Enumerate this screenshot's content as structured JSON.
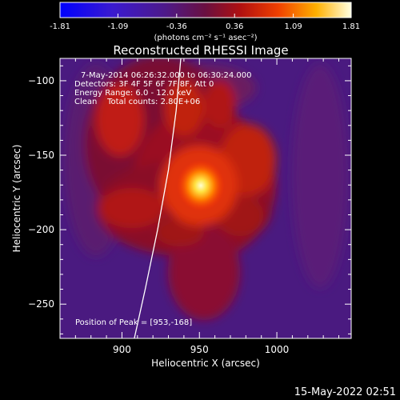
{
  "colorbar": {
    "ticks": [
      "-1.81",
      "-1.09",
      "-0.36",
      "0.36",
      "1.09",
      "1.81"
    ],
    "unit_label": "(photons cm⁻² s⁻¹ asec⁻²)",
    "range": [
      -1.81,
      1.81
    ],
    "colormap": "blue-purple-red-yellow-white"
  },
  "chart_data": {
    "type": "heatmap",
    "title": "Reconstructed RHESSI Image",
    "xlabel": "Heliocentric X (arcsec)",
    "ylabel": "Heliocentric Y (arcsec)",
    "xlim": [
      860,
      1048
    ],
    "ylim": [
      -273,
      -85
    ],
    "xticks": [
      900,
      950,
      1000
    ],
    "yticks": [
      -100,
      -150,
      -200,
      -250
    ],
    "annotations": [
      "7-May-2014 06:26:32.000 to 06:30:24.000",
      "Detectors: 3F 4F 5F 6F 7F 8F, Att 0",
      "Energy Range: 6.0 - 12.0 keV",
      "Clean    Total counts: 2.80E+06"
    ],
    "peak_label": "Position of Peak = [953,-168]",
    "peak": [
      953,
      -168
    ],
    "limb_curve": {
      "x": [
        938,
        935,
        930,
        923,
        915,
        908
      ],
      "y": [
        -85,
        -120,
        -160,
        -200,
        -240,
        -273
      ]
    }
  },
  "footer": {
    "timestamp": "15-May-2022 02:51"
  }
}
